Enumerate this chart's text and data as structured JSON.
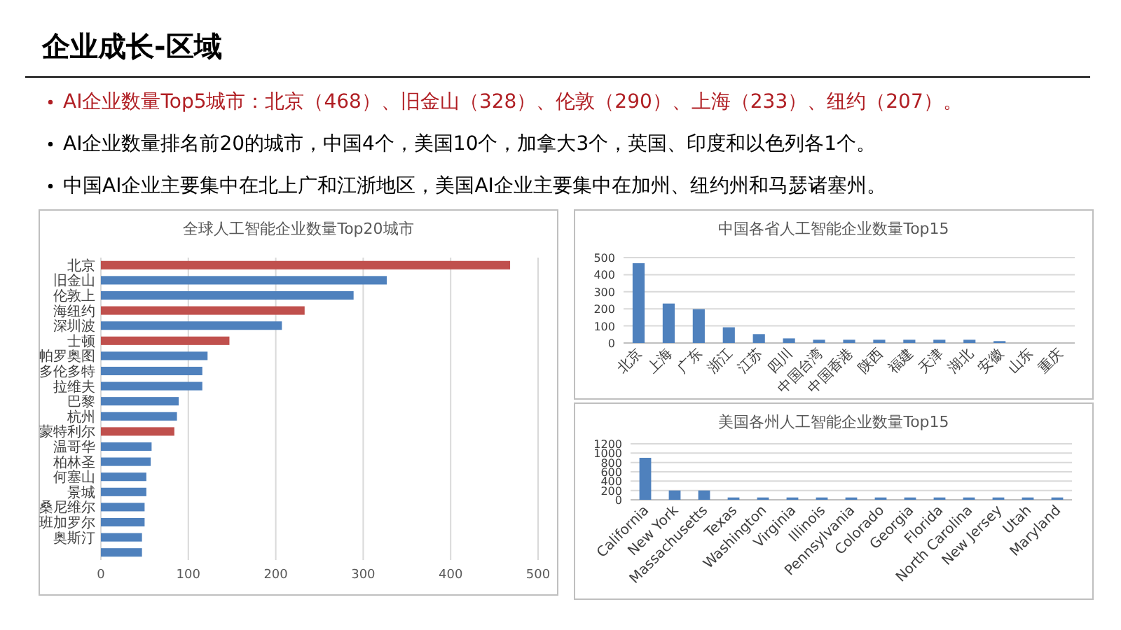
{
  "chart_data": [
    {
      "type": "other",
      "title": "企业成长-区域",
      "annotations": [
        "AI企业数量Top5城市：北京（468）、旧金山（328）、伦敦（290）、上海（233）、纽约（207）。",
        "AI企业数量排名前20的城市，中国4个，美国10个，加拿大3个，英国、印度和以色列各1个。",
        "中国AI企业主要集中在北上广和江浙地区，美国AI企业主要集中在加州、纽约州和马瑟诸塞州。"
      ]
    },
    {
      "type": "bar",
      "orientation": "horizontal",
      "title": "全球人工智能企业数量Top20城市",
      "categories": [
        "北京",
        "旧金山",
        "伦敦上",
        "海纽约",
        "深圳波",
        "士顿",
        "帕罗奥图",
        "多伦多特",
        "拉维夫",
        "巴黎",
        "杭州",
        "蒙特利尔",
        "温哥华",
        "柏林圣",
        "何塞山",
        "景城",
        "桑尼维尔",
        "班加罗尔",
        "奥斯汀",
        null
      ],
      "values": [
        468,
        327,
        289,
        233,
        207,
        147,
        122,
        116,
        116,
        89,
        87,
        84,
        58,
        57,
        52,
        52,
        50,
        50,
        47,
        47
      ],
      "colors": [
        "#c0504d",
        "#4f81bd",
        "#4f81bd",
        "#c0504d",
        "#4f81bd",
        "#c0504d",
        "#4f81bd",
        "#4f81bd",
        "#4f81bd",
        "#4f81bd",
        "#4f81bd",
        "#c0504d",
        "#4f81bd",
        "#4f81bd",
        "#4f81bd",
        "#4f81bd",
        "#4f81bd",
        "#4f81bd",
        "#4f81bd",
        "#4f81bd"
      ],
      "xlim": [
        0,
        500
      ],
      "xticks": [
        0,
        100,
        200,
        300,
        400,
        500
      ],
      "grid": "x"
    },
    {
      "type": "bar",
      "title": "中国各省人工智能企业数量Top15",
      "categories": [
        "北京",
        "上海",
        "广东",
        "浙江",
        "江苏",
        "四川",
        "中国台湾",
        "中国香港",
        "陕西",
        "福建",
        "天津",
        "湖北",
        "安徽",
        "山东",
        "重庆"
      ],
      "values": [
        467,
        231,
        198,
        92,
        52,
        27,
        19,
        19,
        19,
        19,
        19,
        19,
        11,
        0,
        0
      ],
      "color": "#4f81bd",
      "ylim": [
        0,
        500
      ],
      "yticks": [
        0,
        100,
        200,
        300,
        400,
        500
      ],
      "grid": "y"
    },
    {
      "type": "bar",
      "title": "美国各州人工智能企业数量Top15",
      "categories": [
        "California",
        "New York",
        "Massachusetts",
        "Texas",
        "Washington",
        "Virginia",
        "Illinois",
        "Pennsylvania",
        "Colorado",
        "Georgia",
        "Florida",
        "North Carolina",
        "New Jersey",
        "Utah",
        "Maryland"
      ],
      "values": [
        900,
        200,
        200,
        50,
        50,
        50,
        50,
        50,
        50,
        50,
        50,
        50,
        50,
        50,
        50
      ],
      "color": "#4f81bd",
      "ylim": [
        0,
        1200
      ],
      "yticks": [
        0,
        200,
        400,
        600,
        800,
        1000,
        1200
      ],
      "grid": "y"
    }
  ]
}
